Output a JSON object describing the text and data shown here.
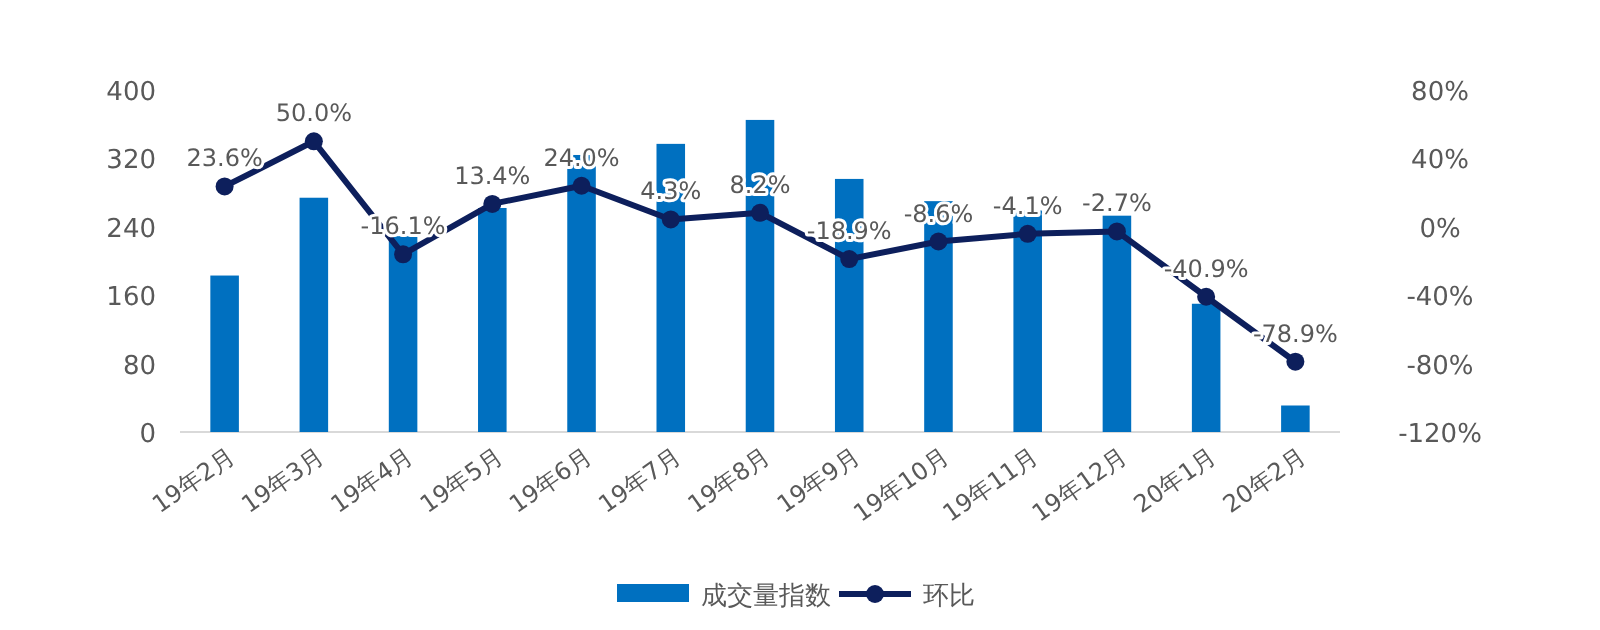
{
  "chart_data": {
    "type": "bar",
    "categories": [
      "19年2月",
      "19年3月",
      "19年4月",
      "19年5月",
      "19年6月",
      "19年7月",
      "19年8月",
      "19年9月",
      "19年10月",
      "19年11月",
      "19年12月",
      "20年1月",
      "20年2月"
    ],
    "series": [
      {
        "name": "成交量指数",
        "type": "bar",
        "color": "#0070c0",
        "values": [
          183,
          274,
          229,
          262,
          324,
          337,
          365,
          296,
          270,
          259,
          253,
          150,
          31
        ]
      },
      {
        "name": "环比",
        "type": "line",
        "axis": "y2",
        "color": "#0d1f5c",
        "marker": "circle",
        "values": [
          23.6,
          50.0,
          -16.1,
          13.4,
          24.0,
          4.3,
          8.2,
          -18.9,
          -8.6,
          -4.1,
          -2.7,
          -40.9,
          -78.9
        ],
        "value_labels": [
          "23.6%",
          "50.0%",
          "-16.1%",
          "13.4%",
          "24.0%",
          "4.3%",
          "8.2%",
          "-18.9%",
          "-8.6%",
          "-4.1%",
          "-2.7%",
          "-40.9%",
          "-78.9%"
        ]
      }
    ],
    "ylim": [
      0,
      400
    ],
    "yticks": [
      0,
      80,
      160,
      240,
      320,
      400
    ],
    "y2lim": [
      -120,
      80
    ],
    "y2ticks": [
      {
        "value": -120,
        "label": "-120%"
      },
      {
        "value": -80,
        "label": "-80%"
      },
      {
        "value": -40,
        "label": "-40%"
      },
      {
        "value": 0,
        "label": "0%"
      },
      {
        "value": 40,
        "label": "40%"
      },
      {
        "value": 80,
        "label": "80%"
      }
    ],
    "legend": "bottom"
  }
}
